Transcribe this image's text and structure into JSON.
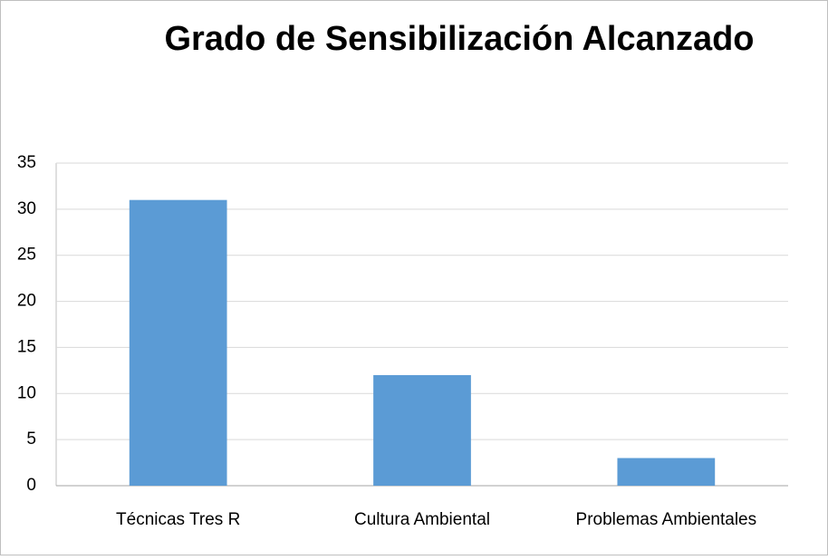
{
  "chart_data": {
    "type": "bar",
    "title": "Grado de Sensibilización Alcanzado",
    "categories": [
      "Técnicas Tres R",
      "Cultura Ambiental",
      "Problemas Ambientales"
    ],
    "values": [
      31,
      12,
      3
    ],
    "color": "#5b9bd5",
    "ylim": [
      0,
      35
    ],
    "yticks": [
      0,
      5,
      10,
      15,
      20,
      25,
      30,
      35
    ],
    "grid": true
  }
}
